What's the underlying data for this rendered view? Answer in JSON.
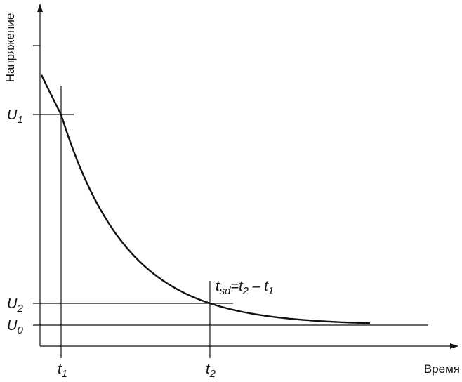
{
  "y_axis_label": "Напряжение",
  "x_axis_label": "Время",
  "levels": [
    {
      "symbol": "U",
      "subscript": "1"
    },
    {
      "symbol": "U",
      "subscript": "2"
    },
    {
      "symbol": "U",
      "subscript": "0"
    }
  ],
  "times": [
    {
      "symbol": "t",
      "subscript": "1"
    },
    {
      "symbol": "t",
      "subscript": "2"
    }
  ],
  "formula": [
    "t",
    "sd",
    "=t",
    "2",
    " – t",
    "1"
  ]
}
